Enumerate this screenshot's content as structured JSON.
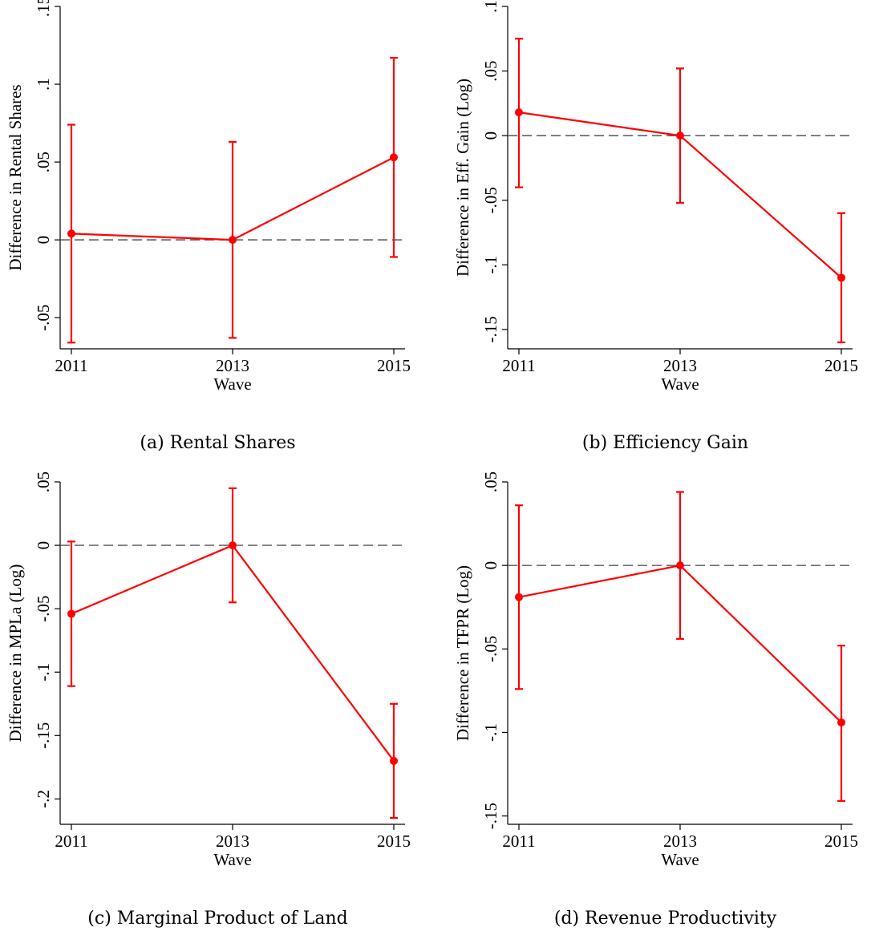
{
  "chart_data": [
    {
      "type": "line",
      "caption": "(a) Rental Shares",
      "xlabel": "Wave",
      "ylabel": "Difference in Rental Shares",
      "x": [
        "2011",
        "2013",
        "2015"
      ],
      "values": [
        0.004,
        0.0,
        0.053
      ],
      "ci_low": [
        -0.066,
        -0.063,
        -0.011
      ],
      "ci_high": [
        0.074,
        0.063,
        0.117
      ],
      "ylim": [
        -0.07,
        0.15
      ],
      "yticks": [
        -0.05,
        0,
        0.05,
        0.1,
        0.15
      ],
      "ytick_labels": [
        "-.05",
        "0",
        ".05",
        ".1",
        ".15"
      ],
      "reference_line": 0,
      "color": "#ff0000"
    },
    {
      "type": "line",
      "caption": "(b) Efficiency Gain",
      "xlabel": "Wave",
      "ylabel": "Difference in Eff. Gain (Log)",
      "x": [
        "2011",
        "2013",
        "2015"
      ],
      "values": [
        0.018,
        0.0,
        -0.11
      ],
      "ci_low": [
        -0.04,
        -0.052,
        -0.16
      ],
      "ci_high": [
        0.075,
        0.052,
        -0.06
      ],
      "ylim": [
        -0.165,
        0.1
      ],
      "yticks": [
        -0.15,
        -0.1,
        -0.05,
        0,
        0.05,
        0.1
      ],
      "ytick_labels": [
        "-.15",
        "-.1",
        "-.05",
        "0",
        ".05",
        ".1"
      ],
      "reference_line": 0,
      "color": "#ff0000"
    },
    {
      "type": "line",
      "caption": "(c) Marginal Product of Land",
      "xlabel": "Wave",
      "ylabel": "Difference in MPLa (Log)",
      "x": [
        "2011",
        "2013",
        "2015"
      ],
      "values": [
        -0.054,
        0.0,
        -0.17
      ],
      "ci_low": [
        -0.111,
        -0.045,
        -0.215
      ],
      "ci_high": [
        0.003,
        0.045,
        -0.125
      ],
      "ylim": [
        -0.22,
        0.05
      ],
      "yticks": [
        -0.2,
        -0.15,
        -0.1,
        -0.05,
        0,
        0.05
      ],
      "ytick_labels": [
        "-.2",
        "-.15",
        "-.1",
        "-.05",
        "0",
        ".05"
      ],
      "reference_line": 0,
      "color": "#ff0000"
    },
    {
      "type": "line",
      "caption": "(d) Revenue Productivity",
      "xlabel": "Wave",
      "ylabel": "Difference in TFPR (Log)",
      "x": [
        "2011",
        "2013",
        "2015"
      ],
      "values": [
        -0.019,
        0.0,
        -0.094
      ],
      "ci_low": [
        -0.074,
        -0.044,
        -0.141
      ],
      "ci_high": [
        0.036,
        0.044,
        -0.048
      ],
      "ylim": [
        -0.155,
        0.05
      ],
      "yticks": [
        -0.15,
        -0.1,
        -0.05,
        0,
        0.05
      ],
      "ytick_labels": [
        "-.15",
        "-.1",
        "-.05",
        "0",
        ".05"
      ],
      "reference_line": 0,
      "color": "#ff0000"
    }
  ]
}
